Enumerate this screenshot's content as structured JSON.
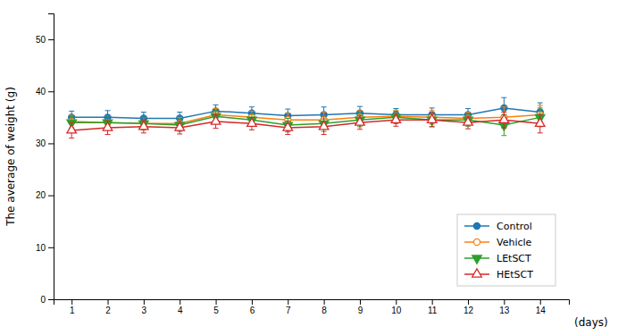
{
  "chart_data": {
    "type": "line",
    "x": [
      1,
      2,
      3,
      4,
      5,
      6,
      7,
      8,
      9,
      10,
      11,
      12,
      13,
      14
    ],
    "xlim": [
      0.5,
      14.8
    ],
    "xticks": [
      1,
      2,
      3,
      4,
      5,
      6,
      7,
      8,
      9,
      10,
      11,
      12,
      13,
      14
    ],
    "ylim": [
      0,
      55
    ],
    "yticks": [
      0,
      10,
      20,
      30,
      40,
      50
    ],
    "xlabel": "(days)",
    "ylabel": "The average of weight (g)",
    "grid": false,
    "legend": "lower right",
    "series": [
      {
        "name": "Control",
        "marker": "circle",
        "values": [
          35.0,
          35.0,
          34.8,
          34.8,
          36.2,
          35.8,
          35.3,
          35.5,
          35.8,
          35.5,
          35.5,
          35.5,
          36.8,
          36.0
        ],
        "errors": [
          1.2,
          1.3,
          1.2,
          1.2,
          1.2,
          1.2,
          1.3,
          1.5,
          1.3,
          1.2,
          1.3,
          1.2,
          2.0,
          1.8
        ]
      },
      {
        "name": "Vehicle",
        "marker": "circle-open",
        "values": [
          34.2,
          34.0,
          33.8,
          33.8,
          35.5,
          35.0,
          34.5,
          34.5,
          35.0,
          35.2,
          35.0,
          34.8,
          35.0,
          35.5
        ],
        "errors": [
          1.2,
          1.3,
          1.2,
          1.2,
          1.2,
          1.2,
          1.3,
          1.5,
          1.3,
          1.2,
          1.3,
          1.2,
          2.0,
          1.8
        ]
      },
      {
        "name": "LEtSCT",
        "marker": "triangle-down",
        "values": [
          34.0,
          34.0,
          33.8,
          33.5,
          35.2,
          34.5,
          33.5,
          33.8,
          34.5,
          35.0,
          34.5,
          34.5,
          33.5,
          35.0
        ],
        "errors": [
          1.2,
          1.3,
          1.2,
          1.2,
          1.2,
          1.2,
          1.3,
          1.5,
          1.3,
          1.2,
          1.3,
          1.2,
          2.0,
          1.8
        ]
      },
      {
        "name": "HEtSCT",
        "marker": "triangle-up-open",
        "values": [
          32.5,
          33.0,
          33.2,
          33.0,
          34.2,
          33.8,
          33.0,
          33.2,
          34.0,
          34.5,
          34.5,
          34.0,
          34.5,
          33.8
        ],
        "errors": [
          1.5,
          1.3,
          1.2,
          1.2,
          1.3,
          1.2,
          1.3,
          1.5,
          1.3,
          1.2,
          1.3,
          1.2,
          1.5,
          1.8
        ]
      }
    ]
  }
}
